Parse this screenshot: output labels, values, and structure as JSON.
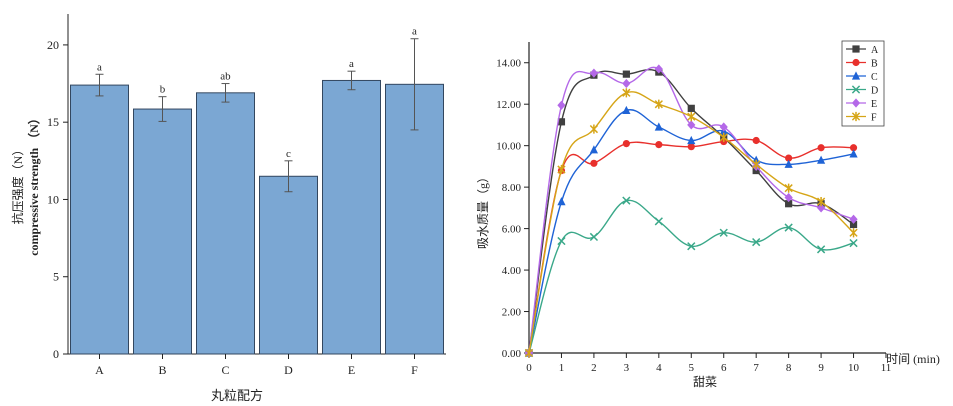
{
  "chart_data": [
    {
      "type": "bar",
      "categories": [
        "A",
        "B",
        "C",
        "D",
        "E",
        "F"
      ],
      "values": [
        17.4,
        15.85,
        16.9,
        11.5,
        17.7,
        17.45
      ],
      "errors": [
        0.7,
        0.8,
        0.6,
        1.0,
        0.6,
        2.95
      ],
      "letters": [
        "a",
        "b",
        "ab",
        "c",
        "a",
        "a"
      ],
      "xlabel": "丸粒配方",
      "ylabel_cn": "抗压强度（N）",
      "ylabel_en": "compressive strength （N）",
      "ylim": [
        0,
        22
      ],
      "yticks": [
        0,
        5,
        10,
        15,
        20
      ],
      "colors": {
        "bar": "#7ba7d3",
        "bar_edge": "#33475f"
      }
    },
    {
      "type": "line",
      "x": [
        0,
        1,
        2,
        3,
        4,
        5,
        6,
        7,
        8,
        9,
        10
      ],
      "xticks": [
        0,
        1,
        2,
        3,
        4,
        5,
        6,
        7,
        8,
        9,
        10,
        11
      ],
      "xlim": [
        0,
        11
      ],
      "ylim": [
        0,
        15
      ],
      "yticks": [
        "0.00",
        "2.00",
        "4.00",
        "6.00",
        "8.00",
        "10.00",
        "12.00",
        "14.00"
      ],
      "xlabel": "甜菜",
      "xlabel_axis": "时间 (min)",
      "ylabel": "吸水质量（g）",
      "legend_position": "top-right",
      "series": [
        {
          "name": "A",
          "color": "#404040",
          "marker": "square",
          "values": [
            0,
            11.15,
            13.4,
            13.45,
            13.55,
            11.8,
            10.4,
            8.8,
            7.2,
            7.2,
            6.2
          ]
        },
        {
          "name": "B",
          "color": "#e8302c",
          "marker": "circle",
          "values": [
            0,
            8.8,
            9.15,
            10.1,
            10.05,
            9.95,
            10.2,
            10.25,
            9.4,
            9.9,
            9.9
          ]
        },
        {
          "name": "C",
          "color": "#1f63d6",
          "marker": "triangle",
          "values": [
            0,
            7.3,
            9.8,
            11.7,
            10.9,
            10.25,
            10.7,
            9.3,
            9.1,
            9.3,
            9.6
          ]
        },
        {
          "name": "D",
          "color": "#3aa889",
          "marker": "x",
          "values": [
            0,
            5.4,
            5.6,
            7.35,
            6.35,
            5.15,
            5.8,
            5.35,
            6.05,
            5.0,
            5.3
          ]
        },
        {
          "name": "E",
          "color": "#b468e8",
          "marker": "diamond",
          "values": [
            0,
            11.95,
            13.5,
            13.0,
            13.7,
            11.0,
            10.9,
            9.0,
            7.5,
            7.0,
            6.45
          ]
        },
        {
          "name": "F",
          "color": "#d6a517",
          "marker": "star",
          "values": [
            0,
            8.85,
            10.8,
            12.55,
            12.0,
            11.4,
            10.4,
            9.1,
            7.95,
            7.3,
            5.8
          ]
        }
      ]
    }
  ]
}
